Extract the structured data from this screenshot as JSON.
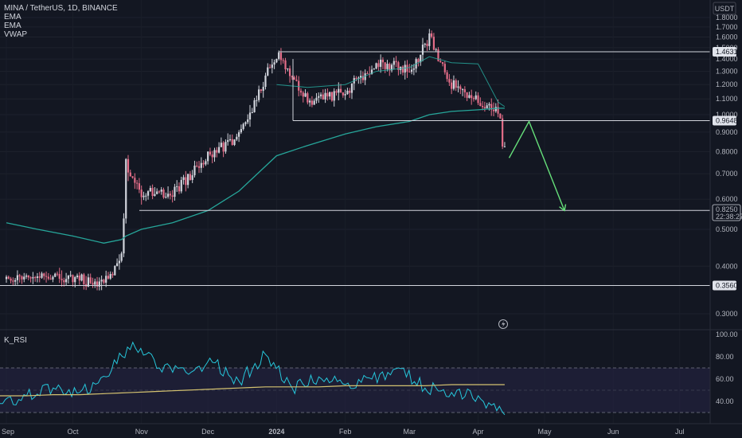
{
  "header": {
    "symbol_line": "MINA / TetherUS, 1D, BINANCE",
    "indicators": [
      "EMA",
      "EMA",
      "VWAP"
    ],
    "currency": "USDT"
  },
  "price_axis": {
    "ticks": [
      "1.8000",
      "1.7000",
      "1.6000",
      "1.5000",
      "1.4000",
      "1.3000",
      "1.2000",
      "1.1000",
      "1.0000",
      "0.9000",
      "0.8000",
      "0.7000",
      "0.6000",
      "0.5000",
      "0.4000",
      "0.3000"
    ],
    "levels": [
      {
        "label": "1.4631",
        "value": 1.4631
      },
      {
        "label": "0.9648",
        "value": 0.9648
      },
      {
        "label": "0.5603",
        "value": 0.5603
      },
      {
        "label": "0.3560",
        "value": 0.356
      }
    ],
    "last_price": {
      "label": "0.8250",
      "countdown": "22:38:27",
      "value": 0.825
    }
  },
  "rsi_panel": {
    "title": "K_RSI",
    "ticks": [
      "100.00",
      "80.00",
      "60.00",
      "40.00"
    ],
    "band_upper": 70,
    "band_mid": 50,
    "band_lower": 30
  },
  "time_axis": {
    "labels": [
      "Sep",
      "Oct",
      "Nov",
      "Dec",
      "2024",
      "Feb",
      "Mar",
      "Apr",
      "May",
      "Jun",
      "Jul"
    ]
  },
  "colors": {
    "background": "#131722",
    "up": "#d1d4dc",
    "down": "#e36d88",
    "ema": "#26a69a",
    "rsi": "#26c6da",
    "rsi_ma": "#d4c270",
    "forecast": "#66e07a",
    "level": "#d1d4dc"
  },
  "chart_data": [
    {
      "type": "candlestick",
      "title": "MINA / TetherUS, 1D, BINANCE",
      "y_scale": "log",
      "ylim": [
        0.28,
        1.85
      ],
      "x": [
        "2023-09-01",
        "2023-09-15",
        "2023-10-01",
        "2023-10-15",
        "2023-10-23",
        "2023-10-25",
        "2023-11-01",
        "2023-11-15",
        "2023-12-01",
        "2023-12-15",
        "2024-01-01",
        "2024-01-15",
        "2024-02-01",
        "2024-02-15",
        "2024-03-01",
        "2024-03-10",
        "2024-03-20",
        "2024-04-01",
        "2024-04-10",
        "2024-04-13"
      ],
      "close": [
        0.37,
        0.38,
        0.37,
        0.36,
        0.42,
        0.74,
        0.63,
        0.62,
        0.78,
        0.88,
        1.45,
        1.09,
        1.15,
        1.37,
        1.3,
        1.58,
        1.21,
        1.08,
        1.05,
        0.825
      ],
      "series": [
        {
          "name": "EMA",
          "values": [
            0.52,
            0.5,
            0.48,
            0.46,
            0.47,
            0.48,
            0.5,
            0.52,
            0.56,
            0.63,
            0.78,
            0.83,
            0.89,
            0.93,
            0.96,
            1.0,
            1.02,
            1.03,
            1.04,
            1.04
          ]
        },
        {
          "name": "EMA",
          "values": [
            null,
            null,
            null,
            null,
            null,
            null,
            null,
            null,
            null,
            null,
            1.2,
            1.18,
            1.2,
            1.3,
            1.33,
            1.42,
            1.37,
            1.36,
            1.08,
            1.05
          ]
        }
      ],
      "grid": true,
      "forecast_path": [
        {
          "date": "2024-04-15",
          "value": 0.77
        },
        {
          "date": "2024-04-24",
          "value": 0.96
        },
        {
          "date": "2024-05-10",
          "value": 0.56
        }
      ]
    },
    {
      "type": "line",
      "title": "K_RSI",
      "ylim": [
        20,
        100
      ],
      "series": [
        {
          "name": "K_RSI",
          "values": [
            38,
            45,
            52,
            48,
            62,
            93,
            70,
            66,
            75,
            58,
            82,
            52,
            62,
            55,
            60,
            70,
            52,
            48,
            45,
            28
          ]
        },
        {
          "name": "MA",
          "values": [
            45,
            45,
            46,
            46,
            47,
            48,
            49,
            50,
            51,
            52,
            53,
            53,
            53,
            54,
            54,
            54,
            54,
            55,
            55,
            55
          ]
        }
      ]
    }
  ]
}
